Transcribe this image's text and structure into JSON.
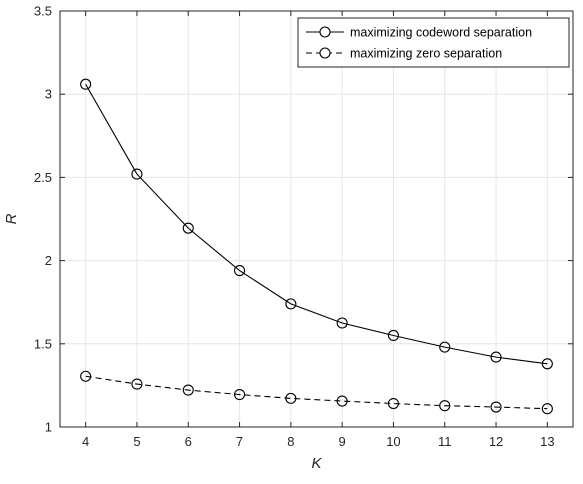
{
  "chart_data": {
    "type": "line",
    "title": "",
    "xlabel": "K",
    "ylabel": "R",
    "x": [
      4,
      5,
      6,
      7,
      8,
      9,
      10,
      11,
      12,
      13
    ],
    "xlim": [
      3.5,
      13.5
    ],
    "ylim": [
      1,
      3.5
    ],
    "xticks": [
      "4",
      "5",
      "6",
      "7",
      "8",
      "9",
      "10",
      "11",
      "12",
      "13"
    ],
    "yticks": [
      "1",
      "1.5",
      "2",
      "2.5",
      "3",
      "3.5"
    ],
    "grid": true,
    "legend_position": "top-right",
    "series": [
      {
        "name": "maximizing codeword separation",
        "line_style": "solid",
        "marker": "circle",
        "color": "#000000",
        "values": [
          3.06,
          2.52,
          2.195,
          1.94,
          1.74,
          1.625,
          1.55,
          1.48,
          1.42,
          1.38
        ]
      },
      {
        "name": "maximizing zero separation",
        "line_style": "dashed",
        "marker": "circle",
        "color": "#000000",
        "values": [
          1.305,
          1.258,
          1.222,
          1.195,
          1.172,
          1.156,
          1.141,
          1.128,
          1.12,
          1.11
        ]
      }
    ]
  }
}
